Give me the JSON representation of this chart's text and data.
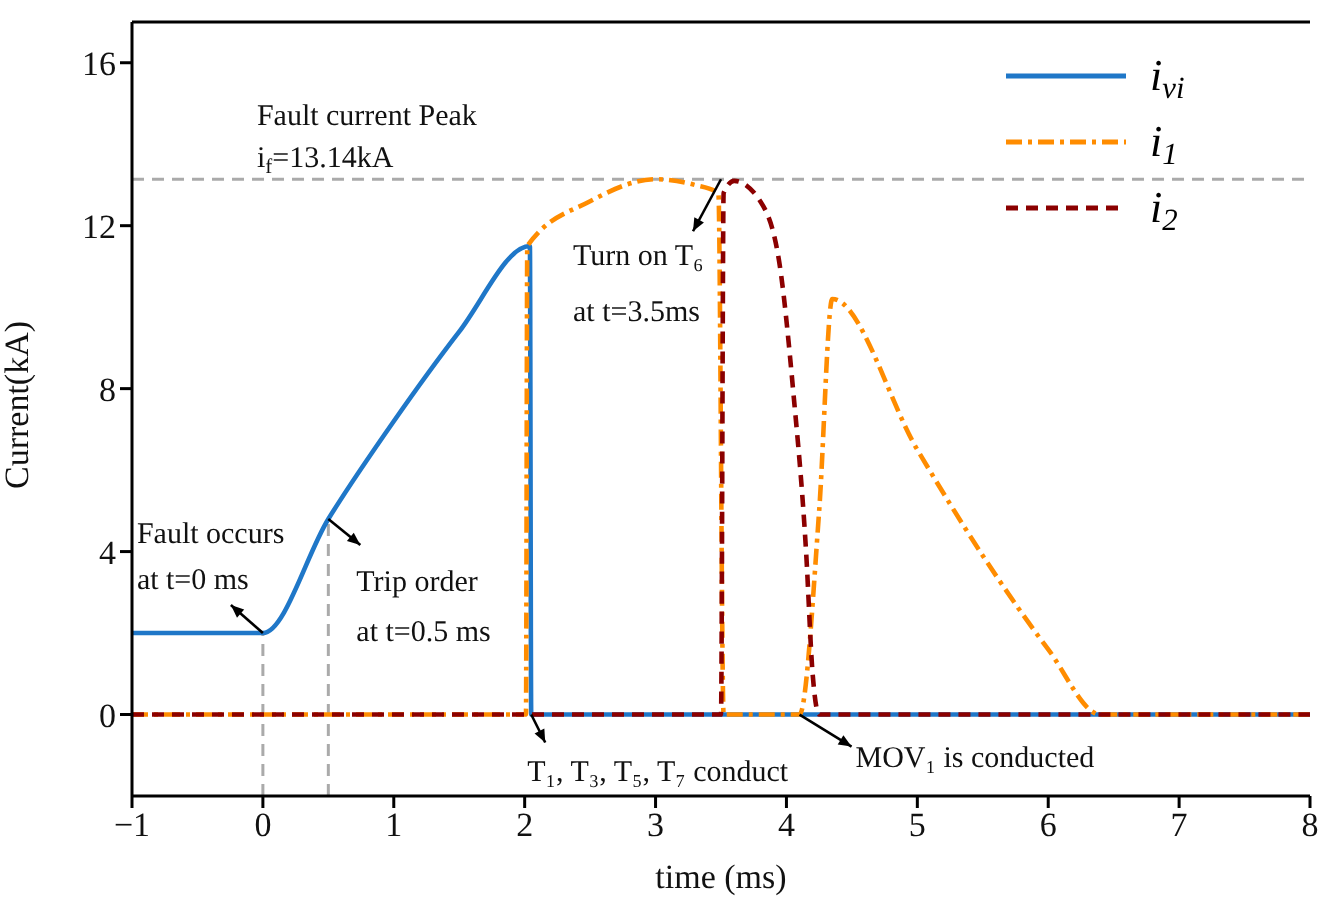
{
  "chart_data": {
    "type": "line",
    "xlabel": "time (ms)",
    "ylabel": "Current(kA)",
    "xlim": [
      -1,
      8
    ],
    "xticks": [
      -1,
      0,
      1,
      2,
      3,
      4,
      5,
      6,
      7,
      8
    ],
    "ylim": [
      -2,
      17
    ],
    "yticks": [
      0,
      4,
      8,
      12,
      16
    ],
    "legend": "top right",
    "marker": "none",
    "series": [
      {
        "name": "i$_{vi}$",
        "color": "#1f77c8",
        "line_style": "solid",
        "x": [
          -1,
          0,
          0.5,
          1,
          1.5,
          2.04,
          2.05,
          8
        ],
        "values": [
          2,
          2,
          4.8,
          7.2,
          9.4,
          11.5,
          0,
          0
        ]
      },
      {
        "name": "i$_{1}$",
        "color": "#ff8c00",
        "line_style": "dashdot",
        "x": [
          -1,
          2.01,
          2.02,
          2.5,
          3,
          3.3,
          3.48,
          3.52,
          4.1,
          4.25,
          4.35,
          5,
          5.5,
          6,
          6.4,
          8
        ],
        "values": [
          0,
          0,
          11.5,
          12.6,
          13.14,
          13,
          12.8,
          0,
          0,
          5,
          10.2,
          6.5,
          3.9,
          1.6,
          0,
          0
        ]
      },
      {
        "name": "i$_{2}$",
        "color": "#8b0000",
        "line_style": "dashed",
        "x": [
          -1,
          3.5,
          3.52,
          3.6,
          3.8,
          3.95,
          4.05,
          4.15,
          4.2,
          4.25,
          8
        ],
        "values": [
          0,
          0,
          12.8,
          13.1,
          12.6,
          11,
          8,
          4,
          1,
          0,
          0
        ]
      }
    ],
    "ref_lines": [
      {
        "axis": "y",
        "value": 13.14,
        "color": "#aaaaaa",
        "line_style": "dashed"
      },
      {
        "axis": "x",
        "value": 0,
        "color": "#aaaaaa",
        "line_style": "dashed"
      },
      {
        "axis": "x",
        "value": 0.5,
        "color": "#aaaaaa",
        "line_style": "dashed"
      }
    ],
    "annotations": [
      {
        "text": "Fault current Peak\ni$_{f}$=13.14kA",
        "x": 0,
        "y": 13.14
      },
      {
        "text": "Fault occurs\nat t=0 ms",
        "x": 0,
        "y": 2
      },
      {
        "text": "Trip order\nat t=0.5 ms",
        "x": 0.5,
        "y": 4.8
      },
      {
        "text": "Turn on T₆\nat t=3.5ms",
        "x": 3.5,
        "y": 13.14
      },
      {
        "text": "T₁, T₃, T₅, T₇ conduct",
        "x": 2.05,
        "y": 0
      },
      {
        "text": "MOV₁ is conducted",
        "x": 4.1,
        "y": 0
      }
    ]
  }
}
